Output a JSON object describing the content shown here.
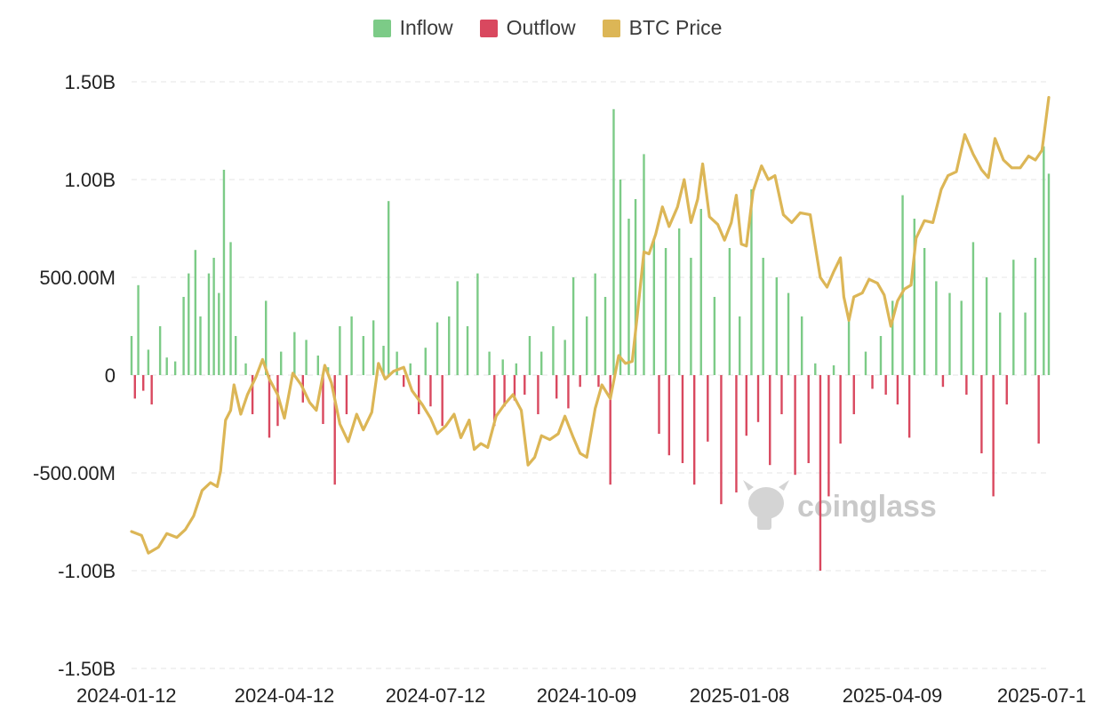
{
  "legend": [
    {
      "label": "Inflow",
      "color": "#7ccb87"
    },
    {
      "label": "Outflow",
      "color": "#d9485f"
    },
    {
      "label": "BTC Price",
      "color": "#dcb656"
    }
  ],
  "watermark": {
    "text": "coinglass"
  },
  "chart_data": {
    "type": "bar",
    "y_ticks": [
      "1.50B",
      "1.00B",
      "500.00M",
      "0",
      "-500.00M",
      "-1.00B",
      "-1.50B"
    ],
    "x_ticks": [
      "2024-01-12",
      "2024-04-12",
      "2024-07-12",
      "2024-10-09",
      "2025-01-08",
      "2025-04-09",
      "2025-07-1"
    ],
    "ylim": [
      -1500000000,
      1500000000
    ],
    "grid": true,
    "legend_position": "top",
    "series": [
      {
        "name": "Inflow",
        "color": "#7ccb87",
        "kind": "bar",
        "points": [
          [
            "2024-01-12",
            200
          ],
          [
            "2024-01-16",
            460
          ],
          [
            "2024-01-22",
            130
          ],
          [
            "2024-01-29",
            250
          ],
          [
            "2024-02-02",
            90
          ],
          [
            "2024-02-07",
            70
          ],
          [
            "2024-02-12",
            400
          ],
          [
            "2024-02-15",
            520
          ],
          [
            "2024-02-19",
            640
          ],
          [
            "2024-02-22",
            300
          ],
          [
            "2024-02-27",
            520
          ],
          [
            "2024-03-01",
            600
          ],
          [
            "2024-03-04",
            420
          ],
          [
            "2024-03-07",
            1050
          ],
          [
            "2024-03-11",
            680
          ],
          [
            "2024-03-14",
            200
          ],
          [
            "2024-03-20",
            60
          ],
          [
            "2024-04-01",
            380
          ],
          [
            "2024-04-10",
            120
          ],
          [
            "2024-04-18",
            220
          ],
          [
            "2024-04-25",
            180
          ],
          [
            "2024-05-02",
            100
          ],
          [
            "2024-05-08",
            40
          ],
          [
            "2024-05-15",
            250
          ],
          [
            "2024-05-22",
            300
          ],
          [
            "2024-05-29",
            200
          ],
          [
            "2024-06-04",
            280
          ],
          [
            "2024-06-10",
            150
          ],
          [
            "2024-06-13",
            890
          ],
          [
            "2024-06-18",
            120
          ],
          [
            "2024-06-26",
            60
          ],
          [
            "2024-07-05",
            140
          ],
          [
            "2024-07-12",
            270
          ],
          [
            "2024-07-19",
            300
          ],
          [
            "2024-07-24",
            480
          ],
          [
            "2024-07-30",
            250
          ],
          [
            "2024-08-05",
            520
          ],
          [
            "2024-08-12",
            120
          ],
          [
            "2024-08-20",
            80
          ],
          [
            "2024-08-28",
            60
          ],
          [
            "2024-09-05",
            200
          ],
          [
            "2024-09-12",
            120
          ],
          [
            "2024-09-19",
            250
          ],
          [
            "2024-09-26",
            180
          ],
          [
            "2024-10-01",
            500
          ],
          [
            "2024-10-09",
            300
          ],
          [
            "2024-10-14",
            520
          ],
          [
            "2024-10-20",
            400
          ],
          [
            "2024-10-25",
            1360
          ],
          [
            "2024-10-29",
            1000
          ],
          [
            "2024-11-03",
            800
          ],
          [
            "2024-11-07",
            900
          ],
          [
            "2024-11-12",
            1130
          ],
          [
            "2024-11-18",
            700
          ],
          [
            "2024-11-25",
            650
          ],
          [
            "2024-12-03",
            750
          ],
          [
            "2024-12-10",
            600
          ],
          [
            "2024-12-16",
            850
          ],
          [
            "2024-12-24",
            400
          ],
          [
            "2025-01-02",
            650
          ],
          [
            "2025-01-08",
            300
          ],
          [
            "2025-01-15",
            950
          ],
          [
            "2025-01-22",
            600
          ],
          [
            "2025-01-30",
            500
          ],
          [
            "2025-02-06",
            420
          ],
          [
            "2025-02-14",
            300
          ],
          [
            "2025-02-22",
            60
          ],
          [
            "2025-03-05",
            50
          ],
          [
            "2025-03-14",
            300
          ],
          [
            "2025-03-24",
            120
          ],
          [
            "2025-04-02",
            200
          ],
          [
            "2025-04-09",
            380
          ],
          [
            "2025-04-15",
            920
          ],
          [
            "2025-04-22",
            800
          ],
          [
            "2025-04-28",
            650
          ],
          [
            "2025-05-05",
            480
          ],
          [
            "2025-05-13",
            420
          ],
          [
            "2025-05-20",
            380
          ],
          [
            "2025-05-27",
            680
          ],
          [
            "2025-06-04",
            500
          ],
          [
            "2025-06-12",
            320
          ],
          [
            "2025-06-20",
            590
          ],
          [
            "2025-06-27",
            320
          ],
          [
            "2025-07-03",
            600
          ],
          [
            "2025-07-08",
            1170
          ],
          [
            "2025-07-11",
            1030
          ]
        ]
      },
      {
        "name": "Outflow",
        "color": "#d9485f",
        "kind": "bar",
        "points": [
          [
            "2024-01-14",
            -120
          ],
          [
            "2024-01-19",
            -80
          ],
          [
            "2024-01-24",
            -150
          ],
          [
            "2024-03-24",
            -200
          ],
          [
            "2024-04-03",
            -320
          ],
          [
            "2024-04-08",
            -260
          ],
          [
            "2024-04-23",
            -140
          ],
          [
            "2024-05-05",
            -250
          ],
          [
            "2024-05-12",
            -560
          ],
          [
            "2024-05-19",
            -200
          ],
          [
            "2024-06-22",
            -60
          ],
          [
            "2024-07-01",
            -200
          ],
          [
            "2024-07-08",
            -160
          ],
          [
            "2024-07-15",
            -260
          ],
          [
            "2024-08-15",
            -260
          ],
          [
            "2024-08-21",
            -160
          ],
          [
            "2024-08-27",
            -130
          ],
          [
            "2024-09-02",
            -100
          ],
          [
            "2024-09-10",
            -200
          ],
          [
            "2024-09-21",
            -120
          ],
          [
            "2024-09-28",
            -170
          ],
          [
            "2024-10-05",
            -60
          ],
          [
            "2024-10-16",
            -60
          ],
          [
            "2024-10-23",
            -560
          ],
          [
            "2024-11-21",
            -300
          ],
          [
            "2024-11-27",
            -410
          ],
          [
            "2024-12-05",
            -450
          ],
          [
            "2024-12-12",
            -560
          ],
          [
            "2024-12-20",
            -340
          ],
          [
            "2024-12-28",
            -660
          ],
          [
            "2025-01-06",
            -600
          ],
          [
            "2025-01-12",
            -310
          ],
          [
            "2025-01-19",
            -240
          ],
          [
            "2025-01-26",
            -460
          ],
          [
            "2025-02-02",
            -200
          ],
          [
            "2025-02-10",
            -510
          ],
          [
            "2025-02-18",
            -450
          ],
          [
            "2025-02-25",
            -1000
          ],
          [
            "2025-03-02",
            -620
          ],
          [
            "2025-03-09",
            -350
          ],
          [
            "2025-03-17",
            -200
          ],
          [
            "2025-03-28",
            -70
          ],
          [
            "2025-04-05",
            -100
          ],
          [
            "2025-04-12",
            -150
          ],
          [
            "2025-04-19",
            -320
          ],
          [
            "2025-05-09",
            -60
          ],
          [
            "2025-05-23",
            -100
          ],
          [
            "2025-06-01",
            -400
          ],
          [
            "2025-06-08",
            -620
          ],
          [
            "2025-06-16",
            -150
          ],
          [
            "2025-07-05",
            -350
          ]
        ]
      },
      {
        "name": "BTC Price",
        "color": "#dcb656",
        "kind": "line",
        "points": [
          [
            "2024-01-12",
            -800
          ],
          [
            "2024-01-18",
            -820
          ],
          [
            "2024-01-22",
            -910
          ],
          [
            "2024-01-28",
            -880
          ],
          [
            "2024-02-02",
            -810
          ],
          [
            "2024-02-08",
            -830
          ],
          [
            "2024-02-13",
            -790
          ],
          [
            "2024-02-18",
            -720
          ],
          [
            "2024-02-23",
            -590
          ],
          [
            "2024-02-28",
            -550
          ],
          [
            "2024-03-03",
            -570
          ],
          [
            "2024-03-05",
            -490
          ],
          [
            "2024-03-08",
            -230
          ],
          [
            "2024-03-11",
            -180
          ],
          [
            "2024-03-13",
            -50
          ],
          [
            "2024-03-17",
            -200
          ],
          [
            "2024-03-21",
            -100
          ],
          [
            "2024-03-26",
            -10
          ],
          [
            "2024-03-30",
            80
          ],
          [
            "2024-04-03",
            -20
          ],
          [
            "2024-04-08",
            -100
          ],
          [
            "2024-04-12",
            -220
          ],
          [
            "2024-04-17",
            10
          ],
          [
            "2024-04-22",
            -50
          ],
          [
            "2024-04-27",
            -140
          ],
          [
            "2024-05-01",
            -180
          ],
          [
            "2024-05-06",
            50
          ],
          [
            "2024-05-10",
            -40
          ],
          [
            "2024-05-15",
            -250
          ],
          [
            "2024-05-20",
            -340
          ],
          [
            "2024-05-25",
            -200
          ],
          [
            "2024-05-29",
            -280
          ],
          [
            "2024-06-03",
            -190
          ],
          [
            "2024-06-07",
            60
          ],
          [
            "2024-06-11",
            -20
          ],
          [
            "2024-06-16",
            20
          ],
          [
            "2024-06-22",
            40
          ],
          [
            "2024-06-27",
            -80
          ],
          [
            "2024-07-03",
            -150
          ],
          [
            "2024-07-08",
            -220
          ],
          [
            "2024-07-12",
            -300
          ],
          [
            "2024-07-17",
            -260
          ],
          [
            "2024-07-22",
            -200
          ],
          [
            "2024-07-26",
            -320
          ],
          [
            "2024-07-31",
            -230
          ],
          [
            "2024-08-03",
            -380
          ],
          [
            "2024-08-07",
            -350
          ],
          [
            "2024-08-11",
            -370
          ],
          [
            "2024-08-16",
            -210
          ],
          [
            "2024-08-21",
            -150
          ],
          [
            "2024-08-26",
            -100
          ],
          [
            "2024-08-31",
            -180
          ],
          [
            "2024-09-04",
            -460
          ],
          [
            "2024-09-08",
            -420
          ],
          [
            "2024-09-12",
            -310
          ],
          [
            "2024-09-17",
            -330
          ],
          [
            "2024-09-22",
            -300
          ],
          [
            "2024-09-26",
            -210
          ],
          [
            "2024-10-01",
            -320
          ],
          [
            "2024-10-05",
            -400
          ],
          [
            "2024-10-09",
            -420
          ],
          [
            "2024-10-14",
            -170
          ],
          [
            "2024-10-18",
            -50
          ],
          [
            "2024-10-23",
            -120
          ],
          [
            "2024-10-28",
            100
          ],
          [
            "2024-11-01",
            60
          ],
          [
            "2024-11-05",
            70
          ],
          [
            "2024-11-08",
            300
          ],
          [
            "2024-11-12",
            630
          ],
          [
            "2024-11-15",
            620
          ],
          [
            "2024-11-19",
            720
          ],
          [
            "2024-11-23",
            860
          ],
          [
            "2024-11-27",
            760
          ],
          [
            "2024-12-02",
            860
          ],
          [
            "2024-12-06",
            1000
          ],
          [
            "2024-12-10",
            780
          ],
          [
            "2024-12-14",
            900
          ],
          [
            "2024-12-17",
            1080
          ],
          [
            "2024-12-21",
            810
          ],
          [
            "2024-12-26",
            770
          ],
          [
            "2024-12-30",
            690
          ],
          [
            "2025-01-03",
            780
          ],
          [
            "2025-01-06",
            920
          ],
          [
            "2025-01-09",
            670
          ],
          [
            "2025-01-12",
            660
          ],
          [
            "2025-01-16",
            940
          ],
          [
            "2025-01-21",
            1070
          ],
          [
            "2025-01-25",
            1000
          ],
          [
            "2025-01-29",
            1020
          ],
          [
            "2025-02-03",
            820
          ],
          [
            "2025-02-08",
            780
          ],
          [
            "2025-02-13",
            830
          ],
          [
            "2025-02-19",
            820
          ],
          [
            "2025-02-25",
            500
          ],
          [
            "2025-03-01",
            450
          ],
          [
            "2025-03-05",
            530
          ],
          [
            "2025-03-09",
            600
          ],
          [
            "2025-03-11",
            400
          ],
          [
            "2025-03-14",
            280
          ],
          [
            "2025-03-17",
            400
          ],
          [
            "2025-03-22",
            420
          ],
          [
            "2025-03-26",
            490
          ],
          [
            "2025-03-31",
            470
          ],
          [
            "2025-04-04",
            410
          ],
          [
            "2025-04-08",
            250
          ],
          [
            "2025-04-12",
            380
          ],
          [
            "2025-04-16",
            440
          ],
          [
            "2025-04-20",
            460
          ],
          [
            "2025-04-23",
            700
          ],
          [
            "2025-04-28",
            790
          ],
          [
            "2025-05-03",
            780
          ],
          [
            "2025-05-08",
            950
          ],
          [
            "2025-05-12",
            1020
          ],
          [
            "2025-05-17",
            1040
          ],
          [
            "2025-05-22",
            1230
          ],
          [
            "2025-05-27",
            1130
          ],
          [
            "2025-06-01",
            1050
          ],
          [
            "2025-06-05",
            1010
          ],
          [
            "2025-06-09",
            1210
          ],
          [
            "2025-06-14",
            1100
          ],
          [
            "2025-06-19",
            1060
          ],
          [
            "2025-06-24",
            1060
          ],
          [
            "2025-06-29",
            1120
          ],
          [
            "2025-07-03",
            1100
          ],
          [
            "2025-07-07",
            1150
          ],
          [
            "2025-07-11",
            1420
          ]
        ]
      }
    ]
  }
}
